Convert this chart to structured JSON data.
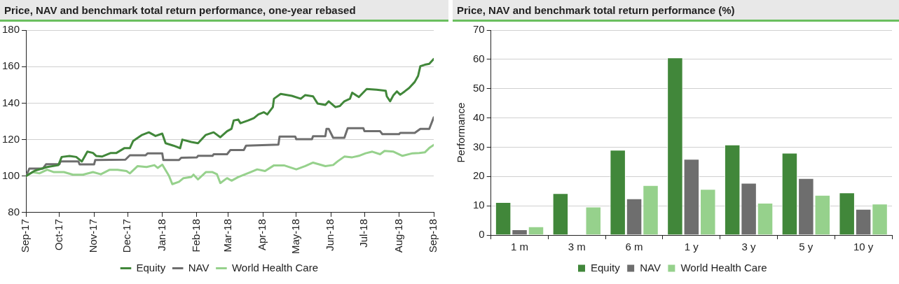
{
  "chart_data": [
    {
      "type": "line",
      "title": "Price, NAV and benchmark total return performance, one-year rebased",
      "legend": "bottom",
      "grid": "y",
      "marker": "none",
      "line_style": "solid",
      "xlim": [
        "2017-09-01",
        "2018-09-01"
      ],
      "ylim": [
        80,
        180
      ],
      "yticks": [
        80,
        100,
        120,
        140,
        160,
        180
      ],
      "xticks": [
        {
          "value": "2017-09-01",
          "label": "Sep-17"
        },
        {
          "value": "2017-10-01",
          "label": "Oct-17"
        },
        {
          "value": "2017-11-01",
          "label": "Nov-17"
        },
        {
          "value": "2017-12-01",
          "label": "Dec-17"
        },
        {
          "value": "2018-01-01",
          "label": "Jan-18"
        },
        {
          "value": "2018-02-01",
          "label": "Feb-18"
        },
        {
          "value": "2018-03-01",
          "label": "Mar-18"
        },
        {
          "value": "2018-04-01",
          "label": "Apr-18"
        },
        {
          "value": "2018-05-01",
          "label": "May-18"
        },
        {
          "value": "2018-06-01",
          "label": "Jun-18"
        },
        {
          "value": "2018-07-01",
          "label": "Jul-18"
        },
        {
          "value": "2018-08-01",
          "label": "Aug-18"
        },
        {
          "value": "2018-09-01",
          "label": "Sep-18"
        }
      ],
      "series": [
        {
          "name": "Equity",
          "color": "#41873a",
          "x": [
            "2017-09-01",
            "2017-09-09",
            "2017-09-20",
            "2017-09-30",
            "2017-10-03",
            "2017-10-10",
            "2017-10-16",
            "2017-10-21",
            "2017-10-26",
            "2017-10-31",
            "2017-11-03",
            "2017-11-08",
            "2017-11-16",
            "2017-11-21",
            "2017-11-28",
            "2017-12-03",
            "2017-12-06",
            "2017-12-14",
            "2017-12-20",
            "2017-12-26",
            "2018-01-01",
            "2018-01-04",
            "2018-01-11",
            "2018-01-17",
            "2018-01-19",
            "2018-01-27",
            "2018-02-02",
            "2018-02-09",
            "2018-02-16",
            "2018-02-22",
            "2018-02-28",
            "2018-03-04",
            "2018-03-06",
            "2018-03-10",
            "2018-03-12",
            "2018-03-19",
            "2018-03-24",
            "2018-03-28",
            "2018-04-02",
            "2018-04-05",
            "2018-04-10",
            "2018-04-11",
            "2018-04-17",
            "2018-04-27",
            "2018-05-05",
            "2018-05-09",
            "2018-05-16",
            "2018-05-20",
            "2018-05-27",
            "2018-05-30",
            "2018-06-05",
            "2018-06-09",
            "2018-06-13",
            "2018-06-18",
            "2018-06-20",
            "2018-06-26",
            "2018-07-03",
            "2018-07-12",
            "2018-07-20",
            "2018-07-21",
            "2018-07-24",
            "2018-07-27",
            "2018-07-30",
            "2018-08-02",
            "2018-08-06",
            "2018-08-10",
            "2018-08-15",
            "2018-08-18",
            "2018-08-20",
            "2018-08-24",
            "2018-08-28",
            "2018-09-01"
          ],
          "values": [
            100,
            103,
            105,
            106,
            110.5,
            111,
            110.5,
            108,
            113.4,
            112.7,
            111,
            110.7,
            112.7,
            112.7,
            115.3,
            115.3,
            119.3,
            122.6,
            124,
            122,
            123.3,
            118,
            116.7,
            115.3,
            120,
            118.7,
            118,
            122.6,
            124,
            121.3,
            124.6,
            125.9,
            130.5,
            131,
            129,
            130.5,
            131.8,
            133.8,
            135,
            133.8,
            137.8,
            142.4,
            145,
            144,
            142.4,
            144.4,
            143.7,
            139.8,
            139,
            141,
            137.8,
            138.4,
            141,
            142.4,
            145.7,
            143.3,
            147.7,
            147.3,
            146.8,
            143.7,
            141,
            144.4,
            146.4,
            144.6,
            146.4,
            148.3,
            151.6,
            154.9,
            160.2,
            161,
            161.5,
            164.2
          ]
        },
        {
          "name": "NAV",
          "color": "#6e6e6e",
          "x": [
            "2017-09-01",
            "2017-09-04",
            "2017-09-16",
            "2017-09-19",
            "2017-10-01",
            "2017-10-02",
            "2017-10-18",
            "2017-10-19",
            "2017-11-01",
            "2017-11-02",
            "2017-11-29",
            "2017-12-03",
            "2017-12-17",
            "2017-12-19",
            "2018-01-01",
            "2018-01-02",
            "2018-01-16",
            "2018-01-18",
            "2018-02-01",
            "2018-02-02",
            "2018-02-15",
            "2018-02-16",
            "2018-02-28",
            "2018-03-03",
            "2018-03-15",
            "2018-03-17",
            "2018-04-15",
            "2018-04-16",
            "2018-04-30",
            "2018-05-01",
            "2018-05-15",
            "2018-05-16",
            "2018-05-27",
            "2018-05-28",
            "2018-05-30",
            "2018-06-03",
            "2018-06-13",
            "2018-06-16",
            "2018-06-30",
            "2018-07-01",
            "2018-07-15",
            "2018-07-17",
            "2018-08-01",
            "2018-08-02",
            "2018-08-15",
            "2018-08-20",
            "2018-08-28",
            "2018-09-01"
          ],
          "values": [
            100,
            104.1,
            104.1,
            106.5,
            106.5,
            108.1,
            108.1,
            106.4,
            106.4,
            108.8,
            109,
            111.4,
            111.4,
            112.5,
            112.5,
            108.8,
            108.8,
            110.1,
            110.3,
            111.1,
            111.1,
            112,
            112,
            114.3,
            114.3,
            116.7,
            117.3,
            121.7,
            121.7,
            120.2,
            120.2,
            121.9,
            121.9,
            125.9,
            125.9,
            121,
            121,
            126.3,
            126.3,
            124.6,
            124.6,
            123,
            123,
            123.7,
            123.7,
            125.9,
            125.9,
            132.2
          ]
        },
        {
          "name": "World Health Care",
          "color": "#96d18c",
          "x": [
            "2017-09-01",
            "2017-09-07",
            "2017-09-13",
            "2017-09-20",
            "2017-09-26",
            "2017-10-05",
            "2017-10-13",
            "2017-10-22",
            "2017-10-31",
            "2017-11-07",
            "2017-11-15",
            "2017-11-22",
            "2017-11-30",
            "2017-12-03",
            "2017-12-10",
            "2017-12-18",
            "2017-12-25",
            "2017-12-28",
            "2018-01-01",
            "2018-01-07",
            "2018-01-10",
            "2018-01-16",
            "2018-01-20",
            "2018-01-27",
            "2018-01-29",
            "2018-02-02",
            "2018-02-09",
            "2018-02-15",
            "2018-02-19",
            "2018-02-22",
            "2018-02-28",
            "2018-03-04",
            "2018-03-10",
            "2018-03-21",
            "2018-03-27",
            "2018-04-03",
            "2018-04-11",
            "2018-04-20",
            "2018-05-01",
            "2018-05-09",
            "2018-05-16",
            "2018-05-27",
            "2018-06-03",
            "2018-06-07",
            "2018-06-13",
            "2018-06-20",
            "2018-06-26",
            "2018-07-02",
            "2018-07-08",
            "2018-07-15",
            "2018-07-19",
            "2018-07-27",
            "2018-08-04",
            "2018-08-13",
            "2018-08-19",
            "2018-08-24",
            "2018-08-28",
            "2018-09-01"
          ],
          "values": [
            100,
            102.2,
            101.5,
            103.5,
            102.2,
            102.2,
            100.8,
            100.8,
            102.2,
            101,
            103.5,
            103.5,
            102.8,
            101.5,
            105.5,
            105,
            106,
            104.5,
            106.3,
            100.2,
            95.6,
            96.9,
            98.9,
            99.5,
            100.8,
            98.2,
            102.2,
            102.2,
            101,
            96.2,
            98.9,
            97.5,
            99.5,
            102.2,
            103.7,
            102.8,
            105.9,
            105.9,
            103.7,
            105.5,
            107.4,
            105.5,
            106.1,
            108.1,
            110.7,
            110.3,
            111.1,
            112.5,
            113.4,
            112,
            113.8,
            113.4,
            111.1,
            112.5,
            112.7,
            113,
            115.4,
            117.1
          ]
        }
      ]
    },
    {
      "type": "bar",
      "title": "Price, NAV and benchmark total return performance (%)",
      "ylabel": "Performance",
      "legend": "bottom",
      "grid": "y",
      "categories": [
        "1 m",
        "3 m",
        "6 m",
        "1 y",
        "3 y",
        "5 y",
        "10 y"
      ],
      "ylim": [
        0,
        70
      ],
      "yticks": [
        0,
        10,
        20,
        30,
        40,
        50,
        60,
        70
      ],
      "series": [
        {
          "name": "Equity",
          "color": "#41873a",
          "values": [
            11.2,
            14.3,
            29.1,
            60.6,
            30.9,
            28.1,
            14.5
          ]
        },
        {
          "name": "NAV",
          "color": "#6e6e6e",
          "values": [
            1.9,
            null,
            12.5,
            26,
            17.8,
            19.4,
            8.9
          ]
        },
        {
          "name": "World Health Care",
          "color": "#96d18c",
          "values": [
            2.9,
            9.7,
            17,
            15.7,
            11,
            13.7,
            10.7
          ]
        }
      ]
    }
  ]
}
